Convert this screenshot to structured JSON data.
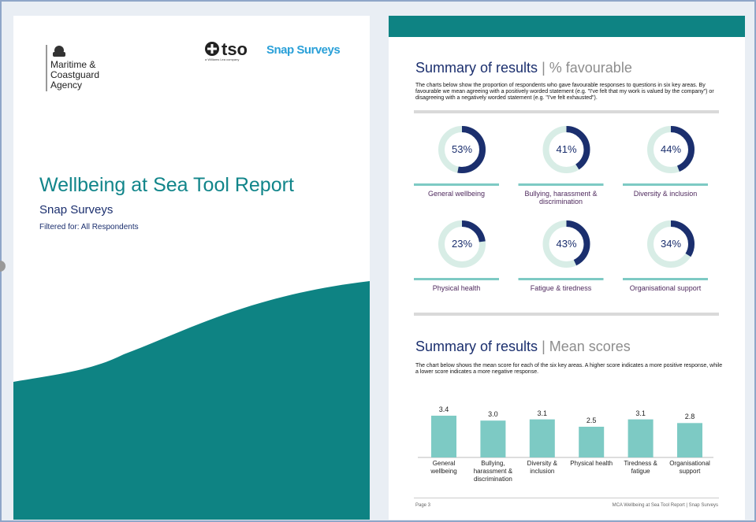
{
  "cover": {
    "agency": "Maritime & Coastguard Agency",
    "tso": "tso",
    "tso_tagline": "a Williams Lea company",
    "snap": "Snap Surveys",
    "title": "Wellbeing at Sea Tool Report",
    "subtitle": "Snap Surveys",
    "filter": "Filtered for: All Respondents"
  },
  "page": {
    "section1_title": "Summary of results",
    "separator": "|",
    "section1_sub": "% favourable",
    "section1_text": "The charts below show the proportion of respondents who gave favourable responses to questions in six key areas. By favourable we mean agreeing with a positively worded statement (e.g. \"I've felt that my work is valued by the company\") or disagreeing with a negatively worded statement (e.g. \"I've felt exhausted\").",
    "section2_title": "Summary of results",
    "section2_sub": "Mean scores",
    "section2_text": "The chart below shows the mean score for each of the six key areas. A higher score indicates a more positive response, while a lower score indicates a more negative response.",
    "footer_left": "Page 3",
    "footer_right": "MCA Wellbeing at Sea Tool Report | Snap Surveys"
  },
  "chart_data": [
    {
      "type": "donut",
      "categories": [
        "General wellbeing",
        "Bullying, harassment & discrimination",
        "Diversity & inclusion",
        "Physical health",
        "Fatigue & tiredness",
        "Organisational support"
      ],
      "values": [
        53,
        41,
        44,
        23,
        43,
        34
      ],
      "value_labels": [
        "53%",
        "41%",
        "44%",
        "23%",
        "43%",
        "34%"
      ],
      "color": "#1b2f6e",
      "track_color": "#d8ede6"
    },
    {
      "type": "bar",
      "categories": [
        "General wellbeing",
        "Bullying, harassment & discrimination",
        "Diversity & inclusion",
        "Physical health",
        "Tiredness & fatigue",
        "Organisational support"
      ],
      "values": [
        3.4,
        3.0,
        3.1,
        2.5,
        3.1,
        2.8
      ],
      "value_labels": [
        "3.4",
        "3.0",
        "3.1",
        "2.5",
        "3.1",
        "2.8"
      ],
      "color": "#7dcac4"
    }
  ]
}
